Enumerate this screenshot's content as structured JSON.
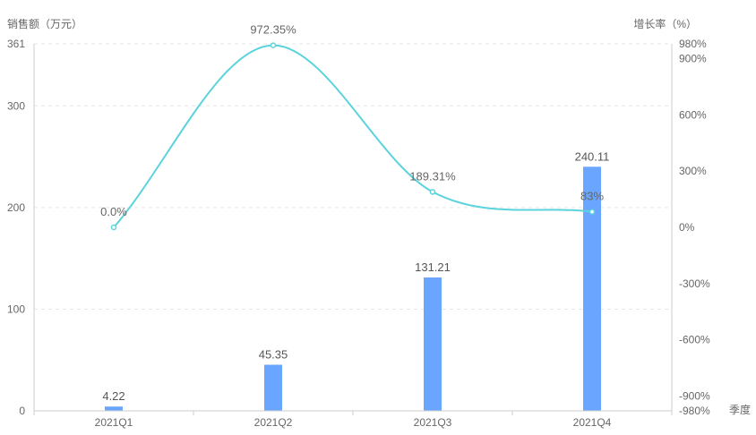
{
  "chart_data": {
    "type": "bar+line",
    "categories": [
      "2021Q1",
      "2021Q2",
      "2021Q3",
      "2021Q4"
    ],
    "bars": {
      "values": [
        4.22,
        45.35,
        131.21,
        240.11
      ],
      "labels": [
        "4.22",
        "45.35",
        "131.21",
        "240.11"
      ],
      "color": "#6aa6ff"
    },
    "line": {
      "values": [
        0,
        972.35,
        189.31,
        83
      ],
      "labels": [
        "0.0%",
        "972.35%",
        "189.31%",
        "83%"
      ],
      "color": "#5bd3dc"
    },
    "y_left": {
      "label": "销售额（万元）",
      "range": [
        0,
        361
      ],
      "ticks": [
        0,
        100,
        200,
        300,
        361
      ],
      "tick_labels": [
        "0",
        "100",
        "200",
        "300",
        "361"
      ]
    },
    "y_right": {
      "label": "增长率（%）",
      "range": [
        -980,
        980
      ],
      "ticks": [
        -980,
        -900,
        -600,
        -300,
        0,
        300,
        600,
        900,
        980
      ],
      "tick_labels": [
        "-980%",
        "-900%",
        "-600%",
        "-300%",
        "0%",
        "300%",
        "600%",
        "900%",
        "980%"
      ]
    },
    "x_axis": {
      "label": "季度"
    },
    "grid": true
  }
}
